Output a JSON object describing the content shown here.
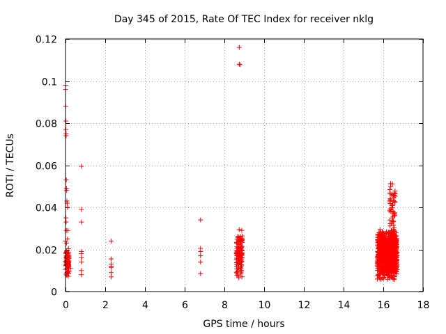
{
  "chart_data": {
    "type": "scatter",
    "title": "Day 345 of 2015, Rate Of TEC Index for receiver nklg",
    "xlabel": "GPS time / hours",
    "ylabel": "ROTI / TECUs",
    "xlim": [
      0,
      18
    ],
    "ylim": [
      0,
      0.12
    ],
    "xticks": [
      0,
      2,
      4,
      6,
      8,
      10,
      12,
      14,
      16,
      18
    ],
    "yticks": [
      0,
      0.02,
      0.04,
      0.06,
      0.08,
      0.1,
      0.12
    ],
    "grid": true,
    "marker": "+",
    "color": "#ff0000",
    "series": [
      {
        "name": "ROTI",
        "points": [
          [
            0.0,
            0.098
          ],
          [
            0.0,
            0.096
          ],
          [
            0.01,
            0.088
          ],
          [
            0.02,
            0.081
          ],
          [
            0.02,
            0.077
          ],
          [
            0.03,
            0.075
          ],
          [
            0.03,
            0.074
          ],
          [
            0.04,
            0.053
          ],
          [
            0.05,
            0.049
          ],
          [
            0.06,
            0.048
          ],
          [
            0.07,
            0.043
          ],
          [
            0.08,
            0.042
          ],
          [
            0.09,
            0.042
          ],
          [
            0.1,
            0.04
          ],
          [
            0.02,
            0.035
          ],
          [
            0.03,
            0.033
          ],
          [
            0.04,
            0.029
          ],
          [
            0.12,
            0.029
          ],
          [
            0.0,
            0.024
          ],
          [
            0.05,
            0.023
          ],
          [
            0.1,
            0.025
          ],
          [
            0.15,
            0.013
          ],
          [
            0.25,
            0.011
          ],
          [
            0.8,
            0.0595
          ],
          [
            0.8,
            0.039
          ],
          [
            0.8,
            0.033
          ],
          [
            0.8,
            0.019
          ],
          [
            0.8,
            0.018
          ],
          [
            0.8,
            0.016
          ],
          [
            0.8,
            0.014
          ],
          [
            0.8,
            0.01
          ],
          [
            0.8,
            0.008
          ],
          [
            2.3,
            0.024
          ],
          [
            2.3,
            0.0155
          ],
          [
            2.3,
            0.013
          ],
          [
            2.3,
            0.012
          ],
          [
            2.3,
            0.0115
          ],
          [
            2.3,
            0.009
          ],
          [
            2.3,
            0.007
          ],
          [
            6.8,
            0.034
          ],
          [
            6.8,
            0.0205
          ],
          [
            6.8,
            0.019
          ],
          [
            6.8,
            0.017
          ],
          [
            6.8,
            0.014
          ],
          [
            6.8,
            0.0085
          ],
          [
            8.75,
            0.116
          ],
          [
            8.75,
            0.108
          ],
          [
            8.78,
            0.1078
          ]
        ]
      }
    ],
    "dense_clusters": [
      {
        "x_min": 0.0,
        "x_max": 0.18,
        "y_min": 0.006,
        "y_max": 0.022,
        "count": 90
      },
      {
        "x_min": 8.6,
        "x_max": 8.9,
        "y_min": 0.005,
        "y_max": 0.03,
        "count": 140
      },
      {
        "x_min": 15.7,
        "x_max": 16.7,
        "y_min": 0.005,
        "y_max": 0.03,
        "count": 900
      },
      {
        "x_min": 16.3,
        "x_max": 16.6,
        "y_min": 0.025,
        "y_max": 0.053,
        "count": 60
      }
    ]
  }
}
